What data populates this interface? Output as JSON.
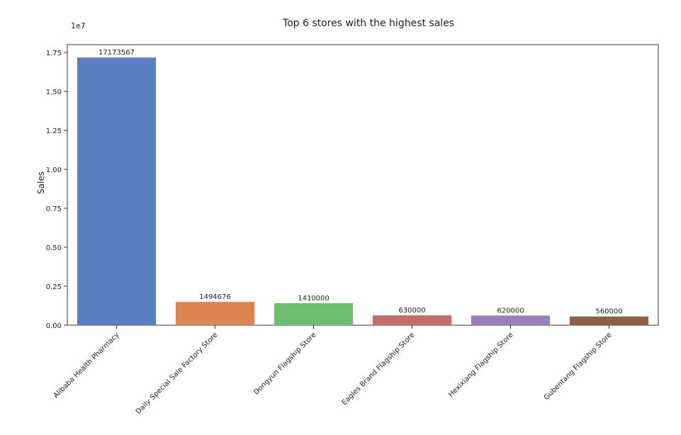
{
  "chart_data": {
    "type": "bar",
    "title": "Top 6 stores with the highest sales",
    "xlabel": "",
    "ylabel": "Sales",
    "scale_label": "1e7",
    "categories": [
      "Alibaba Health Pharmacy",
      "Daily Special Sale Factory Store",
      "Dongyun Flagship Store",
      "Eagles Brand Flagship Store",
      "Hexixiang Flagship Store",
      "Gubentang Flagship Store"
    ],
    "values": [
      17173567,
      1494676,
      1410000,
      630000,
      620000,
      560000
    ],
    "data_labels": [
      "17173567",
      "1494676",
      "1410000",
      "630000",
      "620000",
      "560000"
    ],
    "colors": [
      "#5b7fc2",
      "#dd8452",
      "#6fbf71",
      "#c96a6a",
      "#9a7fbd",
      "#8c6046"
    ],
    "ylim": [
      0,
      18000000
    ],
    "yticks": [
      0,
      2500000,
      5000000,
      7500000,
      10000000,
      12500000,
      15000000,
      17500000
    ],
    "ytick_labels": [
      "0.00",
      "0.25",
      "0.50",
      "0.75",
      "1.00",
      "1.25",
      "1.50",
      "1.75"
    ],
    "grid": false,
    "legend": "none"
  }
}
